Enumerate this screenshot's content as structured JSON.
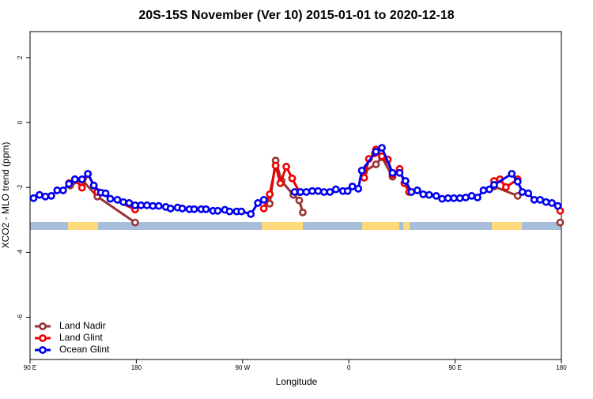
{
  "chart_data": {
    "type": "line",
    "title": "20S-15S November (Ver 10)   2015-01-01 to 2020-12-18",
    "x_label": "Longitude",
    "y_label": "XCO2 - MLO trend (ppm)",
    "xlim": [
      90,
      540
    ],
    "ylim": [
      -7.3,
      2.8
    ],
    "xticks": [
      {
        "value": 90,
        "label": "90 E"
      },
      {
        "value": 180,
        "label": "180"
      },
      {
        "value": 270,
        "label": "90 W"
      },
      {
        "value": 360,
        "label": "0"
      },
      {
        "value": 450,
        "label": "90 E"
      },
      {
        "value": 540,
        "label": "180"
      }
    ],
    "yticks": [
      -6,
      -4,
      -2,
      0,
      2
    ],
    "legend": "bottomleft",
    "series": [
      {
        "name": "Land Nadir",
        "color": "#993333",
        "x": [
          124,
          134,
          147,
          179,
          250,
          293,
          298,
          303,
          313,
          318,
          321,
          340,
          373,
          383,
          388,
          397,
          450,
          483,
          503,
          520,
          539
        ],
        "values": [
          -1.94,
          -1.77,
          -2.28,
          -3.08,
          null,
          -2.5,
          -1.17,
          -1.8,
          -2.23,
          -2.4,
          -2.77,
          null,
          -1.51,
          -1.29,
          -1.07,
          -1.67,
          null,
          -1.97,
          -2.26,
          null,
          -3.08
        ]
      },
      {
        "name": "Land Glint",
        "color": "#ee0000",
        "x": [
          123,
          128,
          134,
          139,
          147,
          179,
          250,
          288,
          293,
          298,
          302,
          307,
          312,
          318,
          340,
          373,
          377,
          382,
          383,
          388,
          393,
          397,
          403,
          407,
          411,
          460,
          483,
          488,
          493,
          503,
          520,
          539
        ],
        "values": [
          -1.87,
          -1.75,
          -2.01,
          -1.58,
          -2.14,
          -2.68,
          null,
          -2.65,
          -2.21,
          -1.33,
          -1.87,
          -1.36,
          -1.72,
          -2.14,
          null,
          -1.7,
          -1.12,
          -0.95,
          -0.83,
          -1.04,
          -1.14,
          -1.6,
          -1.43,
          -1.87,
          -2.14,
          null,
          -1.8,
          -1.75,
          -1.99,
          -1.75,
          null,
          -2.72
        ]
      },
      {
        "name": "Ocean Glint",
        "color": "#0000ee",
        "x": [
          93,
          98,
          103,
          108,
          113,
          118,
          123,
          128,
          134,
          139,
          144,
          150,
          154,
          158,
          164,
          169,
          174,
          179,
          184,
          189,
          194,
          199,
          205,
          209,
          215,
          219,
          225,
          229,
          235,
          239,
          245,
          249,
          255,
          259,
          265,
          269,
          277,
          283,
          288,
          300,
          314,
          319,
          324,
          329,
          334,
          339,
          344,
          349,
          355,
          359,
          363,
          368,
          371,
          383,
          388,
          397,
          403,
          408,
          413,
          418,
          423,
          428,
          434,
          439,
          444,
          449,
          454,
          459,
          464,
          469,
          474,
          479,
          483,
          498,
          503,
          507,
          512,
          517,
          522,
          527,
          532,
          537
        ],
        "values": [
          -2.33,
          -2.23,
          -2.28,
          -2.26,
          -2.09,
          -2.09,
          -1.89,
          -1.75,
          -1.75,
          -1.58,
          -1.94,
          -2.16,
          -2.18,
          -2.35,
          -2.38,
          -2.45,
          -2.48,
          -2.55,
          -2.55,
          -2.55,
          -2.57,
          -2.57,
          -2.6,
          -2.65,
          -2.62,
          -2.65,
          -2.67,
          -2.67,
          -2.67,
          -2.67,
          -2.72,
          -2.72,
          -2.69,
          -2.74,
          -2.74,
          -2.74,
          -2.82,
          -2.48,
          -2.38,
          null,
          -2.14,
          -2.14,
          -2.14,
          -2.11,
          -2.11,
          -2.14,
          -2.14,
          -2.06,
          -2.11,
          -2.11,
          -1.97,
          -2.04,
          -1.48,
          -0.9,
          -0.78,
          -1.55,
          -1.55,
          -1.8,
          -2.14,
          -2.09,
          -2.21,
          -2.23,
          -2.26,
          -2.35,
          -2.33,
          -2.33,
          -2.33,
          -2.31,
          -2.26,
          -2.31,
          -2.09,
          -2.06,
          -1.92,
          -1.58,
          -1.82,
          -2.14,
          -2.18,
          -2.38,
          -2.38,
          -2.45,
          -2.48,
          -2.57
        ]
      }
    ]
  }
}
